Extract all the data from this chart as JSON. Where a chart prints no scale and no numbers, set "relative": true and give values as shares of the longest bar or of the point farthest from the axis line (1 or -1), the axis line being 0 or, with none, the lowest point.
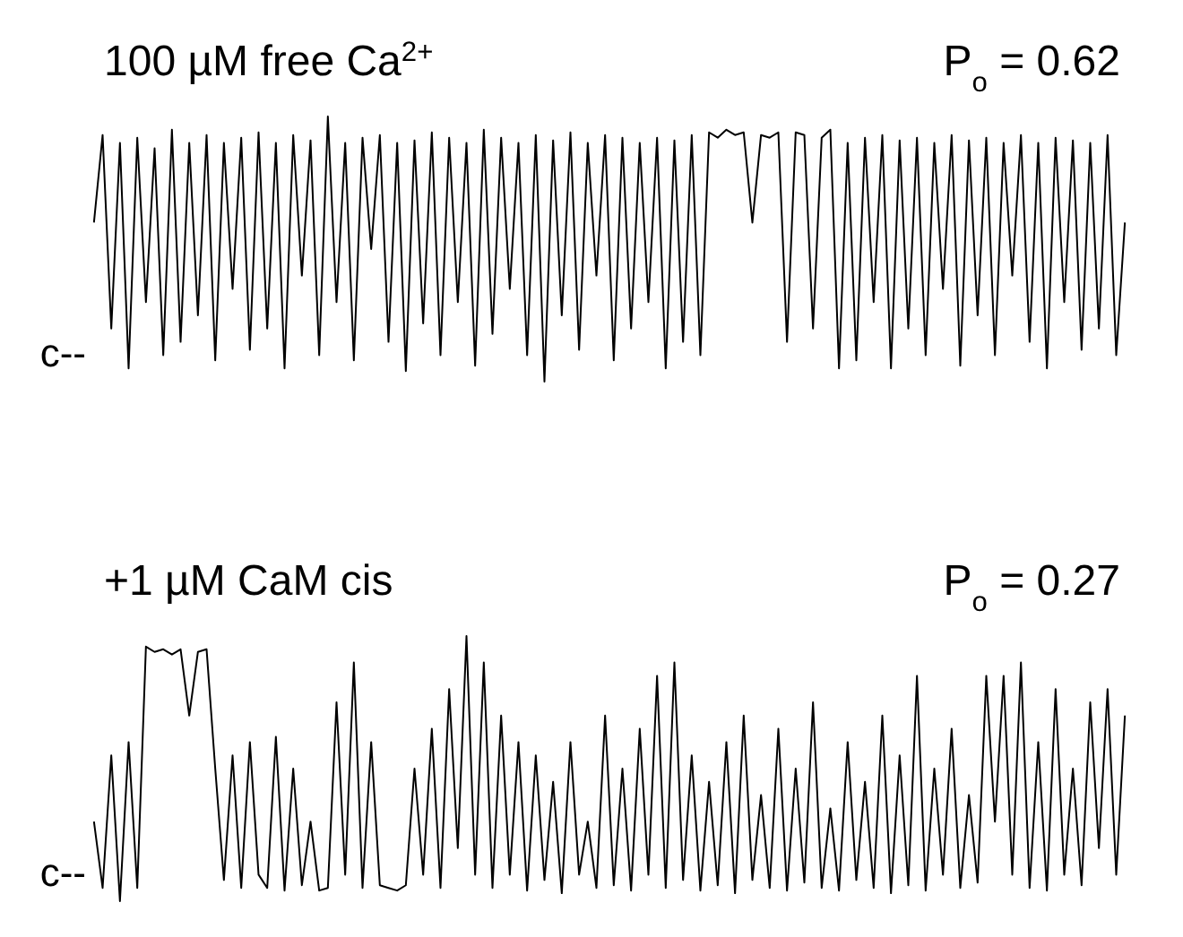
{
  "chart_data": [
    {
      "type": "line",
      "title": "100 µM free Ca$^{2+}$",
      "relative": true,
      "marker": "none",
      "line_style": "solid",
      "annotations": [
        "P$_{o}$ = 0.62",
        "c--"
      ],
      "categories": [
        null,
        null,
        null,
        null,
        null,
        null,
        null,
        null,
        null,
        null,
        null,
        null,
        null,
        null,
        null,
        null,
        null,
        null,
        null,
        null,
        null,
        null,
        null,
        null,
        null,
        null,
        null,
        null,
        null,
        null,
        null,
        null,
        null,
        null,
        null,
        null,
        null,
        null,
        null,
        null,
        null,
        null,
        null,
        null,
        null,
        null,
        null,
        null,
        null,
        null,
        null,
        null,
        null,
        null,
        null,
        null,
        null,
        null,
        null,
        null,
        null,
        null,
        null,
        null,
        null,
        null,
        null,
        null,
        null,
        null,
        null,
        null,
        null,
        null,
        null,
        null,
        null,
        null,
        null,
        null,
        null,
        null,
        null,
        null,
        null,
        null,
        null,
        null,
        null,
        null,
        null,
        null,
        null,
        null,
        null,
        null,
        null,
        null,
        null,
        null,
        null,
        null,
        null,
        null,
        null,
        null,
        null,
        null,
        null,
        null,
        null,
        null,
        null,
        null,
        null,
        null,
        null,
        null,
        null,
        null
      ],
      "series": [
        {
          "color": "#000000",
          "values": [
            0.6,
            0.93,
            0.2,
            0.9,
            0.05,
            0.92,
            0.3,
            0.88,
            0.1,
            0.95,
            0.15,
            0.9,
            0.25,
            0.93,
            0.08,
            0.9,
            0.35,
            0.92,
            0.12,
            0.94,
            0.2,
            0.9,
            0.05,
            0.93,
            0.4,
            0.91,
            0.1,
            1,
            0.3,
            0.9,
            0.08,
            0.92,
            0.5,
            0.93,
            0.15,
            0.9,
            0.04,
            0.91,
            0.22,
            0.94,
            0.1,
            0.92,
            0.3,
            0.9,
            0.06,
            0.95,
            0.18,
            0.92,
            0.35,
            0.9,
            0.1,
            0.93,
            0,
            0.91,
            0.25,
            0.94,
            0.12,
            0.9,
            0.4,
            0.93,
            0.08,
            0.92,
            0.2,
            0.9,
            0.3,
            0.92,
            0.05,
            0.91,
            0.15,
            0.93,
            0.1,
            0.94,
            0.92,
            0.95,
            0.93,
            0.94,
            0.6,
            0.93,
            0.92,
            0.94,
            0.15,
            0.94,
            0.93,
            0.2,
            0.92,
            0.95,
            0.05,
            0.9,
            0.08,
            0.92,
            0.3,
            0.93,
            0.05,
            0.91,
            0.2,
            0.92,
            0.1,
            0.9,
            0.35,
            0.93,
            0.06,
            0.91,
            0.25,
            0.92,
            0.1,
            0.9,
            0.4,
            0.93,
            0.15,
            0.9,
            0.05,
            0.92,
            0.3,
            0.91,
            0.12,
            0.9,
            0.2,
            0.93,
            0.1,
            0.6
          ]
        }
      ]
    },
    {
      "type": "line",
      "title": "+1 µM CaM cis",
      "relative": true,
      "marker": "none",
      "line_style": "solid",
      "annotations": [
        "P$_{o}$ = 0.27",
        "c--"
      ],
      "categories": [
        null,
        null,
        null,
        null,
        null,
        null,
        null,
        null,
        null,
        null,
        null,
        null,
        null,
        null,
        null,
        null,
        null,
        null,
        null,
        null,
        null,
        null,
        null,
        null,
        null,
        null,
        null,
        null,
        null,
        null,
        null,
        null,
        null,
        null,
        null,
        null,
        null,
        null,
        null,
        null,
        null,
        null,
        null,
        null,
        null,
        null,
        null,
        null,
        null,
        null,
        null,
        null,
        null,
        null,
        null,
        null,
        null,
        null,
        null,
        null,
        null,
        null,
        null,
        null,
        null,
        null,
        null,
        null,
        null,
        null,
        null,
        null,
        null,
        null,
        null,
        null,
        null,
        null,
        null,
        null,
        null,
        null,
        null,
        null,
        null,
        null,
        null,
        null,
        null,
        null,
        null,
        null,
        null,
        null,
        null,
        null,
        null,
        null,
        null,
        null,
        null,
        null,
        null,
        null,
        null,
        null,
        null,
        null,
        null,
        null,
        null,
        null,
        null,
        null,
        null,
        null,
        null,
        null,
        null,
        null
      ],
      "series": [
        {
          "color": "#000000",
          "values": [
            0.3,
            0.05,
            0.55,
            0,
            0.6,
            0.05,
            0.96,
            0.94,
            0.95,
            0.93,
            0.95,
            0.7,
            0.94,
            0.95,
            0.5,
            0.08,
            0.55,
            0.05,
            0.6,
            0.1,
            0.05,
            0.62,
            0.04,
            0.5,
            0.06,
            0.3,
            0.04,
            0.05,
            0.75,
            0.1,
            0.9,
            0.05,
            0.6,
            0.06,
            0.05,
            0.04,
            0.06,
            0.5,
            0.1,
            0.65,
            0.05,
            0.8,
            0.2,
            1,
            0.1,
            0.9,
            0.05,
            0.7,
            0.1,
            0.6,
            0.04,
            0.55,
            0.08,
            0.45,
            0.03,
            0.6,
            0.1,
            0.3,
            0.05,
            0.7,
            0.06,
            0.5,
            0.04,
            0.65,
            0.1,
            0.85,
            0.05,
            0.9,
            0.08,
            0.55,
            0.04,
            0.45,
            0.06,
            0.6,
            0.03,
            0.7,
            0.08,
            0.4,
            0.05,
            0.65,
            0.04,
            0.5,
            0.07,
            0.75,
            0.05,
            0.35,
            0.04,
            0.6,
            0.08,
            0.45,
            0.05,
            0.7,
            0.03,
            0.55,
            0.06,
            0.85,
            0.04,
            0.5,
            0.1,
            0.65,
            0.05,
            0.4,
            0.07,
            0.85,
            0.3,
            0.85,
            0.1,
            0.9,
            0.05,
            0.6,
            0.04,
            0.8,
            0.1,
            0.5,
            0.06,
            0.75,
            0.2,
            0.8,
            0.1,
            0.7
          ]
        }
      ]
    }
  ]
}
